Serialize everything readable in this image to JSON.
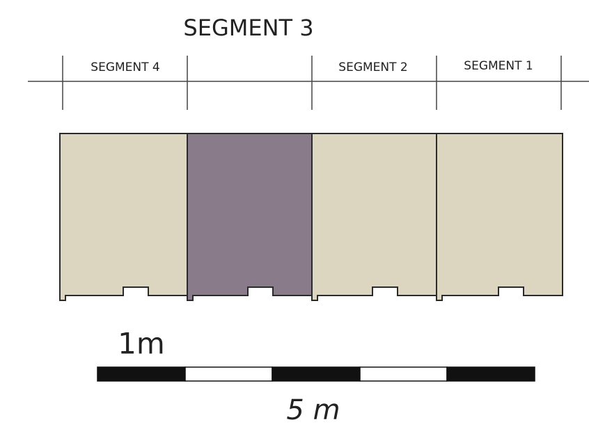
{
  "top_label": "SEGMENT 3",
  "segment_labels": [
    "SEGMENT 4",
    "SEGMENT 2",
    "SEGMENT 1"
  ],
  "scale": {
    "unit_label": "1m",
    "total_label": "5 m"
  }
}
